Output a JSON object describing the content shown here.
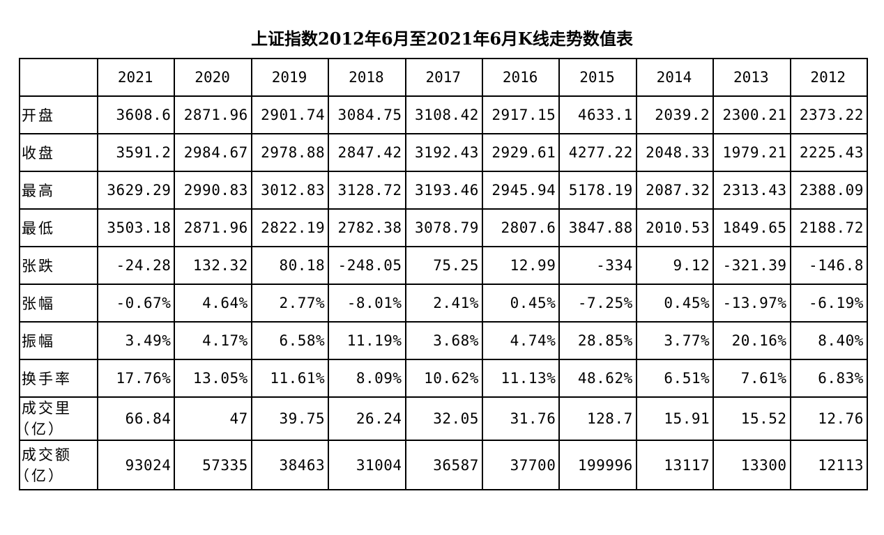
{
  "title": "上证指数2012年6月至2021年6月K线走势数值表",
  "table": {
    "years": [
      "2021",
      "2020",
      "2019",
      "2018",
      "2017",
      "2016",
      "2015",
      "2014",
      "2013",
      "2012"
    ],
    "rows": [
      {
        "label": "开盘",
        "values": [
          "3608.6",
          "2871.96",
          "2901.74",
          "3084.75",
          "3108.42",
          "2917.15",
          "4633.1",
          "2039.2",
          "2300.21",
          "2373.22"
        ]
      },
      {
        "label": "收盘",
        "values": [
          "3591.2",
          "2984.67",
          "2978.88",
          "2847.42",
          "3192.43",
          "2929.61",
          "4277.22",
          "2048.33",
          "1979.21",
          "2225.43"
        ]
      },
      {
        "label": "最高",
        "values": [
          "3629.29",
          "2990.83",
          "3012.83",
          "3128.72",
          "3193.46",
          "2945.94",
          "5178.19",
          "2087.32",
          "2313.43",
          "2388.09"
        ]
      },
      {
        "label": "最低",
        "values": [
          "3503.18",
          "2871.96",
          "2822.19",
          "2782.38",
          "3078.79",
          "2807.6",
          "3847.88",
          "2010.53",
          "1849.65",
          "2188.72"
        ]
      },
      {
        "label": "张跌",
        "values": [
          "-24.28",
          "132.32",
          "80.18",
          "-248.05",
          "75.25",
          "12.99",
          "-334",
          "9.12",
          "-321.39",
          "-146.8"
        ]
      },
      {
        "label": "张幅",
        "values": [
          "-0.67%",
          "4.64%",
          "2.77%",
          "-8.01%",
          "2.41%",
          "0.45%",
          "-7.25%",
          "0.45%",
          "-13.97%",
          "-6.19%"
        ]
      },
      {
        "label": "振幅",
        "values": [
          "3.49%",
          "4.17%",
          "6.58%",
          "11.19%",
          "3.68%",
          "4.74%",
          "28.85%",
          "3.77%",
          "20.16%",
          "8.40%"
        ]
      },
      {
        "label": "换手率",
        "values": [
          "17.76%",
          "13.05%",
          "11.61%",
          "8.09%",
          "10.62%",
          "11.13%",
          "48.62%",
          "6.51%",
          "7.61%",
          "6.83%"
        ]
      },
      {
        "label": "成交里",
        "label2": "（亿）",
        "values": [
          "66.84",
          "47",
          "39.75",
          "26.24",
          "32.05",
          "31.76",
          "128.7",
          "15.91",
          "15.52",
          "12.76"
        ]
      },
      {
        "label": "成交额",
        "label2": "（亿）",
        "values": [
          "93024",
          "57335",
          "38463",
          "31004",
          "36587",
          "37700",
          "199996",
          "13117",
          "13300",
          "12113"
        ]
      }
    ]
  }
}
